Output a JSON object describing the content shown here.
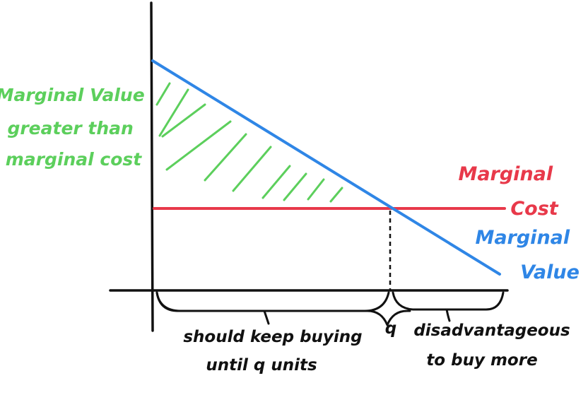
{
  "labels": {
    "surplus": [
      "Marginal Value",
      "greater than",
      "marginal cost"
    ],
    "marginal_cost": [
      "Marginal",
      "Cost"
    ],
    "marginal_value": [
      "Marginal",
      "Value"
    ],
    "quantity": "q",
    "left_brace_text": [
      "should keep buying",
      "until q units"
    ],
    "right_brace_text": [
      "disadvantageous",
      "to buy more"
    ]
  },
  "colors": {
    "surplus": "#5ccf5c",
    "marginal_cost": "#e8394a",
    "marginal_value": "#2f86e6",
    "axes": "#111111"
  }
}
